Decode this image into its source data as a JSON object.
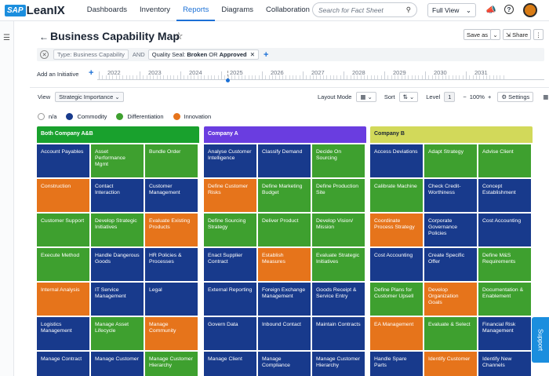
{
  "nav": {
    "logo_sap": "SAP",
    "logo_text": "LeanIX",
    "tabs": [
      {
        "label": "Dashboards"
      },
      {
        "label": "Inventory"
      },
      {
        "label": "Reports",
        "active": true
      },
      {
        "label": "Diagrams"
      },
      {
        "label": "Collaboration"
      }
    ],
    "search_placeholder": "Search for Fact Sheet",
    "view_select": "Full View",
    "icons": [
      "megaphone-icon",
      "help-icon"
    ]
  },
  "header": {
    "title": "Business Capability Map",
    "save_as": "Save as",
    "share": "Share"
  },
  "filters": {
    "type_chip": "Type: Business Capability",
    "and": "AND",
    "quality_prefix": "Quality Seal:",
    "quality_broken": "Broken",
    "quality_or": "OR",
    "quality_approved": "Approved"
  },
  "timeline": {
    "add_initiative": "Add an Initiative",
    "years": [
      "2022",
      "2023",
      "2024",
      "2025",
      "2026",
      "2027",
      "2028",
      "2029",
      "2030",
      "2031"
    ]
  },
  "toolbar": {
    "view_label": "View",
    "view_value": "Strategic Importance",
    "layout_mode": "Layout Mode",
    "sort": "Sort",
    "level_label": "Level",
    "level_value": "1",
    "zoom": "100%",
    "settings": "Settings"
  },
  "legend": [
    {
      "label": "n/a",
      "color": "#ffffff"
    },
    {
      "label": "Commodity",
      "color": "#183a8c"
    },
    {
      "label": "Differentiation",
      "color": "#3ea02f"
    },
    {
      "label": "Innovation",
      "color": "#e6741b"
    }
  ],
  "columns": [
    {
      "title": "Both Company A&B",
      "header_color": "#19a12d",
      "header_text_color": "#ffffff",
      "cells": [
        {
          "label": "Account Payables",
          "kind": "commodity"
        },
        {
          "label": "Asset Performance Mgmt",
          "kind": "differentiation"
        },
        {
          "label": "Bundle Order",
          "kind": "differentiation"
        },
        {
          "label": "Construction",
          "kind": "innovation"
        },
        {
          "label": "Contact Interaction",
          "kind": "commodity"
        },
        {
          "label": "Customer Management",
          "kind": "commodity"
        },
        {
          "label": "Customer Support",
          "kind": "differentiation"
        },
        {
          "label": "Develop Strategic Initiatives",
          "kind": "differentiation"
        },
        {
          "label": "Evaluate Existing Products",
          "kind": "innovation"
        },
        {
          "label": "Execute Method",
          "kind": "differentiation"
        },
        {
          "label": "Handle Dangerous Goods",
          "kind": "commodity"
        },
        {
          "label": "HR Policies & Processes",
          "kind": "commodity"
        },
        {
          "label": "Internal Analysis",
          "kind": "innovation"
        },
        {
          "label": "IT Service Management",
          "kind": "commodity"
        },
        {
          "label": "Legal",
          "kind": "commodity"
        },
        {
          "label": "Logistics Management",
          "kind": "commodity"
        },
        {
          "label": "Manage Asset Lifecycle",
          "kind": "differentiation"
        },
        {
          "label": "Manage Community",
          "kind": "innovation"
        },
        {
          "label": "Manage Contract",
          "kind": "commodity"
        },
        {
          "label": "Manage Customer",
          "kind": "commodity"
        },
        {
          "label": "Manage Customer Hierarchy",
          "kind": "differentiation"
        }
      ]
    },
    {
      "title": "Company A",
      "header_color": "#6a3de0",
      "header_text_color": "#ffffff",
      "cells": [
        {
          "label": "Analyse Customer Intelligence",
          "kind": "commodity"
        },
        {
          "label": "Classify Demand",
          "kind": "commodity"
        },
        {
          "label": "Decide On Sourcing",
          "kind": "differentiation"
        },
        {
          "label": "Define Customer Risks",
          "kind": "innovation"
        },
        {
          "label": "Define Marketing Budget",
          "kind": "differentiation"
        },
        {
          "label": "Define Production Site",
          "kind": "differentiation"
        },
        {
          "label": "Define Sourcing Strategy",
          "kind": "differentiation"
        },
        {
          "label": "Deliver Product",
          "kind": "differentiation"
        },
        {
          "label": "Develop Vision/ Mission",
          "kind": "differentiation"
        },
        {
          "label": "Enact Supplier Contract",
          "kind": "commodity"
        },
        {
          "label": "Establish Measures",
          "kind": "innovation"
        },
        {
          "label": "Evaluate Strategic Initiatives",
          "kind": "differentiation"
        },
        {
          "label": "External Reporting",
          "kind": "commodity"
        },
        {
          "label": "Foreign Exchange Management",
          "kind": "commodity"
        },
        {
          "label": "Goods Receipt & Service Entry",
          "kind": "commodity"
        },
        {
          "label": "Govern Data",
          "kind": "commodity"
        },
        {
          "label": "Inbound Contact",
          "kind": "commodity"
        },
        {
          "label": "Maintain Contracts",
          "kind": "commodity"
        },
        {
          "label": "Manage Client",
          "kind": "commodity"
        },
        {
          "label": "Manage Compliance",
          "kind": "commodity"
        },
        {
          "label": "Manage Customer Hierarchy",
          "kind": "commodity"
        }
      ]
    },
    {
      "title": "Company B",
      "header_color": "#d2d95a",
      "header_text_color": "#1a2433",
      "cells": [
        {
          "label": "Access Deviations",
          "kind": "commodity"
        },
        {
          "label": "Adapt Strategy",
          "kind": "differentiation"
        },
        {
          "label": "Advise Client",
          "kind": "differentiation"
        },
        {
          "label": "Calibrate Machine",
          "kind": "differentiation"
        },
        {
          "label": "Check Credit-Worthiness",
          "kind": "commodity"
        },
        {
          "label": "Concept Establishment",
          "kind": "commodity"
        },
        {
          "label": "Coordinate Process Strategy",
          "kind": "innovation"
        },
        {
          "label": "Corporate Governance Policies",
          "kind": "commodity"
        },
        {
          "label": "Cost Accounting",
          "kind": "commodity"
        },
        {
          "label": "Cost Accounting",
          "kind": "commodity"
        },
        {
          "label": "Create Specific Offer",
          "kind": "commodity"
        },
        {
          "label": "Define M&S Requirements",
          "kind": "differentiation"
        },
        {
          "label": "Define Plans for Customer Upsell",
          "kind": "differentiation"
        },
        {
          "label": "Develop Organization Goals",
          "kind": "innovation"
        },
        {
          "label": "Documentation & Enablement",
          "kind": "differentiation"
        },
        {
          "label": "EA Management",
          "kind": "innovation"
        },
        {
          "label": "Evaluate & Select",
          "kind": "differentiation"
        },
        {
          "label": "Financial Risk Management",
          "kind": "commodity"
        },
        {
          "label": "Handle Spare Parts",
          "kind": "commodity"
        },
        {
          "label": "Identify Customer",
          "kind": "innovation"
        },
        {
          "label": "Identify New Channels",
          "kind": "commodity"
        }
      ]
    }
  ],
  "support_label": "Support"
}
